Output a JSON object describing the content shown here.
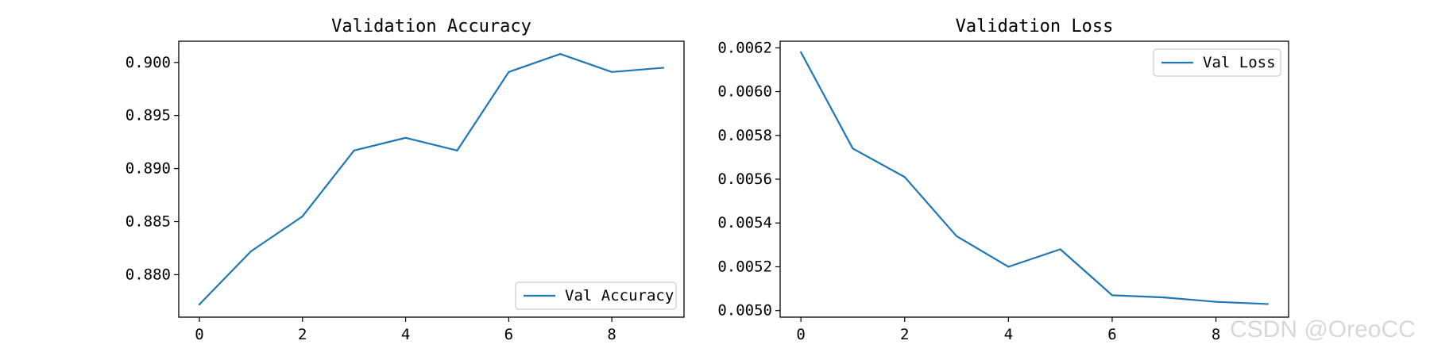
{
  "watermark": "CSDN @OreoCC",
  "colors": {
    "line": "#1f77b4",
    "axis": "#000000",
    "legend_border": "#cccccc"
  },
  "chart_data": [
    {
      "type": "line",
      "title": "Validation Accuracy",
      "xlabel": "",
      "ylabel": "",
      "x": [
        0,
        1,
        2,
        3,
        4,
        5,
        6,
        7,
        8,
        9
      ],
      "xlim": [
        -0.4,
        9.4
      ],
      "ylim": [
        0.876,
        0.902
      ],
      "xticks": [
        0,
        2,
        4,
        6,
        8
      ],
      "yticks": [
        0.88,
        0.885,
        0.89,
        0.895,
        0.9
      ],
      "ytick_labels": [
        "0.880",
        "0.885",
        "0.890",
        "0.895",
        "0.900"
      ],
      "grid": false,
      "legend_position": "lower right",
      "series": [
        {
          "name": "Val Accuracy",
          "color": "#1f77b4",
          "values": [
            0.8772,
            0.8822,
            0.8855,
            0.8917,
            0.8929,
            0.8917,
            0.8991,
            0.9008,
            0.8991,
            0.8995
          ]
        }
      ]
    },
    {
      "type": "line",
      "title": "Validation Loss",
      "xlabel": "",
      "ylabel": "",
      "x": [
        0,
        1,
        2,
        3,
        4,
        5,
        6,
        7,
        8,
        9
      ],
      "xlim": [
        -0.4,
        9.4
      ],
      "ylim": [
        0.00497,
        0.00623
      ],
      "xticks": [
        0,
        2,
        4,
        6,
        8
      ],
      "yticks": [
        0.005,
        0.0052,
        0.0054,
        0.0056,
        0.0058,
        0.006,
        0.0062
      ],
      "ytick_labels": [
        "0.0050",
        "0.0052",
        "0.0054",
        "0.0056",
        "0.0058",
        "0.0060",
        "0.0062"
      ],
      "grid": false,
      "legend_position": "upper right",
      "series": [
        {
          "name": "Val Loss",
          "color": "#1f77b4",
          "values": [
            0.00618,
            0.00574,
            0.00561,
            0.00534,
            0.0052,
            0.00528,
            0.00507,
            0.00506,
            0.00504,
            0.00503
          ]
        }
      ]
    }
  ]
}
